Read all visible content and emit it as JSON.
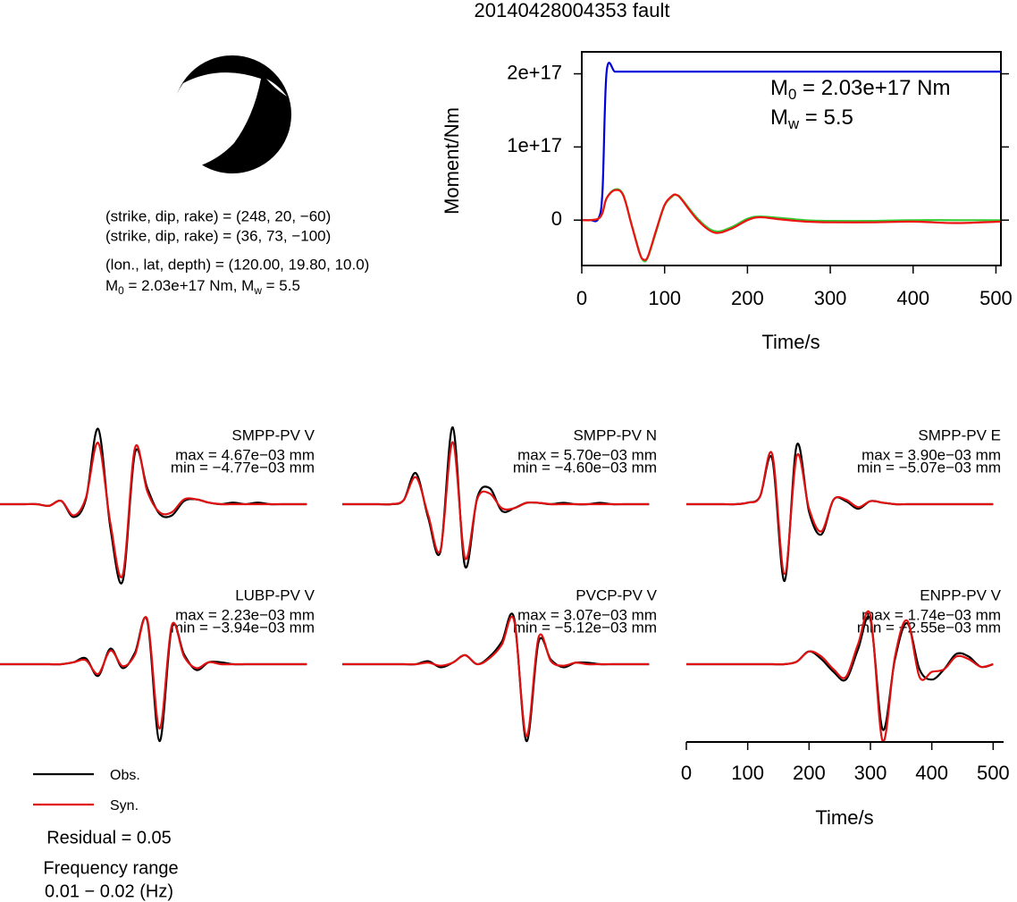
{
  "title": "20140428004353 fault",
  "solution": {
    "lines": [
      "(strike, dip, rake) = (248, 20, −60)",
      "(strike, dip, rake) = (36, 73, −100)",
      "(lon., lat, depth) = (120.00, 19.80, 10.0)"
    ],
    "moment_line": [
      "M",
      "0",
      " = 2.03e+17 Nm, M",
      "w",
      " = 5.5"
    ]
  },
  "chart_data": [
    {
      "type": "line",
      "xlabel": "Time/s",
      "ylabel": "Moment/Nm",
      "x": [
        0,
        10,
        20,
        25,
        30,
        40,
        50,
        60,
        70,
        75,
        80,
        90,
        100,
        110,
        115,
        120,
        140,
        160,
        180,
        200,
        215,
        240,
        270,
        300,
        350,
        400,
        450,
        505
      ],
      "xlim": [
        0,
        506
      ],
      "xticks": [
        0,
        100,
        200,
        300,
        400,
        500
      ],
      "ylim": [
        -6.2e+16,
        2.3e+17
      ],
      "yticks": [
        0,
        {
          "value": 1e+17,
          "label": "1e+17"
        },
        {
          "value": 2e+17,
          "label": "2e+17"
        }
      ],
      "series": [
        {
          "color": "#0000dd",
          "values": [
            0,
            0,
            2000000000000000.0,
            4e+16,
            2.03e+17,
            2.03e+17,
            2.03e+17,
            2.03e+17,
            2.03e+17,
            2.03e+17,
            2.03e+17,
            2.03e+17,
            2.03e+17,
            2.03e+17,
            2.03e+17,
            2.03e+17,
            2.03e+17,
            2.03e+17,
            2.03e+17,
            2.03e+17,
            2.03e+17,
            2.03e+17,
            2.03e+17,
            2.03e+17,
            2.03e+17,
            2.03e+17,
            2.03e+17,
            2.03e+17
          ]
        },
        {
          "color": "#33cc33",
          "values": [
            0,
            0,
            2000000000000000.0,
            1e+16,
            3e+16,
            4.2e+16,
            3.5e+16,
            -5000000000000000.0,
            -4.5e+16,
            -5.6e+16,
            -5e+16,
            -1.5e+16,
            2e+16,
            3.3e+16,
            3.4e+16,
            3e+16,
            2000000000000000.0,
            -1.5e+16,
            -1e+16,
            2000000000000000.0,
            5000000000000000.0,
            3000000000000000.0,
            0,
            -1000000000000000.0,
            -1000000000000000.0,
            0,
            0,
            0
          ]
        },
        {
          "color": "#ee1111",
          "values": [
            0,
            0,
            2000000000000000.0,
            1e+16,
            3e+16,
            4.1e+16,
            3.4e+16,
            -6000000000000000.0,
            -4.6e+16,
            -5.4e+16,
            -4.9e+16,
            -1.3e+16,
            2.1e+16,
            3.4e+16,
            3.4e+16,
            2.9e+16,
            0,
            -1.7e+16,
            -1.2e+16,
            0,
            4000000000000000.0,
            1000000000000000.0,
            -2000000000000000.0,
            -3000000000000000.0,
            -3000000000000000.0,
            -2000000000000000.0,
            -4000000000000000.0,
            -2000000000000000.0
          ]
        }
      ],
      "annotations": [
        [
          "M",
          "0",
          " = 2.03e+17 Nm"
        ],
        [
          "M",
          "w",
          " = 5.5"
        ]
      ]
    },
    {
      "type": "line",
      "xlabel": "Time/s",
      "x": [
        0,
        20,
        40,
        60,
        80,
        100,
        120,
        140,
        160,
        180,
        200,
        220,
        240,
        260,
        280,
        300,
        320,
        340,
        360,
        380,
        400,
        420,
        440,
        460,
        480,
        500
      ],
      "xlim": [
        0,
        517
      ],
      "xticks": [
        0,
        100,
        200,
        300,
        400,
        500
      ],
      "series": [
        {
          "name": "Obs.",
          "color": "#000000"
        },
        {
          "name": "Syn.",
          "color": "#e01010"
        }
      ],
      "panels": [
        {
          "station": "SMPP-PV V",
          "max_label": "max = 4.67e−03 mm",
          "min_label": "min = −4.77e−03 mm",
          "values": [
            [
              0,
              0,
              0,
              0,
              -0.0001,
              0.0002,
              -0.0008,
              0.0003,
              0.00467,
              -0.0015,
              -0.00477,
              0.0032,
              0.001,
              -0.0006,
              -0.0007,
              0.0002,
              0.0003,
              0.0001,
              0,
              0.0001,
              0,
              0.0001,
              0,
              0,
              0,
              0
            ],
            [
              0,
              0,
              0,
              0,
              -0.0001,
              0.0002,
              -0.0007,
              0.0004,
              0.0038,
              -0.0012,
              -0.0044,
              0.0035,
              0.0008,
              -0.0005,
              -0.0005,
              0.0003,
              0.0003,
              0.0001,
              0,
              0,
              0,
              0,
              0,
              0,
              0,
              0
            ]
          ]
        },
        {
          "station": "SMPP-PV N",
          "max_label": "max = 5.70e−03 mm",
          "min_label": "min = −4.60e−03 mm",
          "values": [
            [
              0,
              0,
              0,
              0,
              0,
              0.0003,
              0.0023,
              -0.001,
              -0.0035,
              0.0057,
              -0.0046,
              0.0005,
              0.0012,
              -0.0005,
              -0.0003,
              0.0001,
              0.0001,
              0,
              0.0001,
              0,
              0,
              0.0001,
              0,
              0,
              0,
              0
            ],
            [
              0,
              0,
              0,
              0,
              0,
              0.0003,
              0.002,
              -0.0008,
              -0.0034,
              0.0046,
              -0.004,
              0.0004,
              0.0008,
              -0.0003,
              -0.0003,
              0.0001,
              0.0001,
              0,
              0,
              0,
              0,
              0,
              0,
              0,
              0,
              0
            ]
          ]
        },
        {
          "station": "SMPP-PV E",
          "max_label": "max = 3.90e−03 mm",
          "min_label": "min = −5.07e−03 mm",
          "values": [
            [
              0,
              0,
              0,
              0,
              0,
              0.0001,
              0.0005,
              0.003,
              -0.00507,
              0.0039,
              -0.0005,
              -0.002,
              0.0003,
              0.0002,
              -0.0003,
              0.0002,
              0.0001,
              0,
              0,
              0,
              0,
              0,
              0,
              0,
              0,
              0
            ],
            [
              0,
              0,
              0,
              0,
              0,
              0.0001,
              0.0005,
              0.0033,
              -0.0046,
              0.0032,
              -0.0003,
              -0.0018,
              0.0003,
              0.0003,
              -0.0002,
              0.0002,
              0.0001,
              0,
              0,
              0,
              0,
              0,
              0,
              0,
              0,
              0
            ]
          ]
        },
        {
          "station": "LUBP-PV V",
          "max_label": "max = 2.23e−03 mm",
          "min_label": "min = −3.94e−03 mm",
          "values": [
            [
              0,
              0,
              0,
              0,
              0,
              0,
              0.0001,
              0.0003,
              -0.0006,
              0.0008,
              -0.0002,
              0.0006,
              0.00223,
              -0.00394,
              0.0019,
              0.0005,
              -0.0003,
              0.0001,
              0.0001,
              0,
              0,
              0,
              0,
              0,
              0,
              0
            ],
            [
              0,
              0,
              0,
              0,
              0,
              0,
              0.0001,
              0.0002,
              -0.0005,
              0.0007,
              -0.0001,
              0.0005,
              0.0023,
              -0.0033,
              0.002,
              0.0004,
              -0.0002,
              0.0001,
              0,
              0,
              0,
              0,
              0,
              0,
              0,
              0
            ]
          ]
        },
        {
          "station": "PVCP-PV V",
          "max_label": "max = 3.07e−03 mm",
          "min_label": "min = −5.12e−03 mm",
          "values": [
            [
              0,
              0,
              0,
              0,
              0,
              0,
              0,
              0.0002,
              -0.0002,
              0.0001,
              0.0006,
              0,
              0.0005,
              0.0015,
              0.00307,
              -0.00512,
              0.0015,
              0.0003,
              -0.0002,
              0.0001,
              0.0001,
              0,
              0,
              0,
              0,
              0
            ],
            [
              0,
              0,
              0,
              0,
              0,
              0,
              0,
              0.0001,
              -0.0001,
              0.0001,
              0.0006,
              0,
              0.0004,
              0.0013,
              0.0029,
              -0.0048,
              0.0018,
              0.0002,
              -0.0001,
              0.0001,
              0,
              0,
              0,
              0,
              0,
              0
            ]
          ]
        },
        {
          "station": "ENPP-PV V",
          "max_label": "max = 1.74e−03 mm",
          "min_label": "min = −2.55e−03 mm",
          "values": [
            [
              0,
              0,
              0,
              0,
              0,
              0,
              0,
              0,
              0,
              0.0001,
              0.0005,
              0.0002,
              -0.0003,
              -0.0006,
              0.0006,
              0.00174,
              -0.00255,
              0.0002,
              0.0016,
              -0.0002,
              -0.0006,
              -0.0002,
              0.0004,
              0.0003,
              -0.0001,
              0
            ],
            [
              0,
              0,
              0,
              0,
              0,
              0,
              0,
              0,
              0,
              0.0001,
              0.0005,
              0.0003,
              -0.0002,
              -0.0005,
              0.0008,
              0.0019,
              -0.003,
              0.0003,
              0.0017,
              -0.0005,
              -0.0003,
              -0.0002,
              0.0003,
              0.0002,
              -0.0001,
              0
            ]
          ]
        }
      ],
      "residual": "Residual = 0.05",
      "frequency_label": "Frequency range",
      "frequency_range": "0.01 − 0.02 (Hz)"
    }
  ]
}
